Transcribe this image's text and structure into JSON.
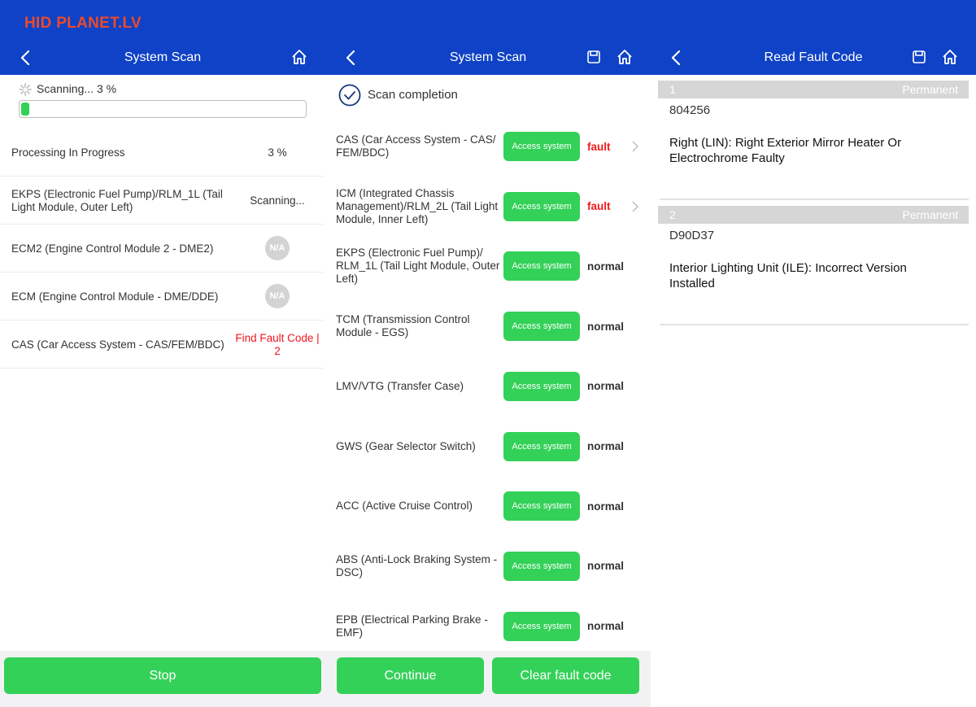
{
  "brand": "HID PLANET.LV",
  "panels": [
    {
      "header": {
        "title": "System Scan"
      },
      "status": "Scanning... 3 %",
      "progress": 3,
      "rows": [
        {
          "label": "Processing In Progress",
          "status": "3 %"
        },
        {
          "label": "EKPS (Electronic Fuel Pump)/RLM_1L (Tail Light Module, Outer Left)",
          "status": "Scanning..."
        },
        {
          "label": "ECM2 (Engine Control Module 2 - DME2)",
          "badge": "N/A"
        },
        {
          "label": "ECM (Engine Control Module - DME/DDE)",
          "badge": "N/A"
        },
        {
          "label": "CAS (Car Access System - CAS/FEM/BDC)",
          "status": "Find Fault Code | 2",
          "alert": true
        }
      ],
      "buttons": [
        "Stop"
      ]
    },
    {
      "header": {
        "title": "System Scan"
      },
      "status": "Scan completion",
      "rows": [
        {
          "label": "CAS (Car Access System - CAS/ FEM/BDC)",
          "button": "Access system",
          "status": "fault",
          "alert": true,
          "arrow": true
        },
        {
          "label": "ICM (Integrated Chassis Management)/RLM_2L (Tail Light Module, Inner Left)",
          "button": "Access system",
          "status": "fault",
          "alert": true,
          "arrow": true
        },
        {
          "label": "EKPS (Electronic Fuel Pump)/ RLM_1L (Tail Light Module, Outer Left)",
          "button": "Access system",
          "status": "normal"
        },
        {
          "label": "TCM (Transmission Control Module - EGS)",
          "button": "Access system",
          "status": "normal"
        },
        {
          "label": "LMV/VTG (Transfer Case)",
          "button": "Access system",
          "status": "normal"
        },
        {
          "label": "GWS (Gear Selector Switch)",
          "button": "Access system",
          "status": "normal"
        },
        {
          "label": "ACC (Active Cruise Control)",
          "button": "Access system",
          "status": "normal"
        },
        {
          "label": "ABS (Anti-Lock Braking System - DSC)",
          "button": "Access system",
          "status": "normal"
        },
        {
          "label": "EPB (Electrical Parking Brake - EMF)",
          "button": "Access system",
          "status": "normal"
        }
      ],
      "buttons": [
        "Continue",
        "Clear fault code"
      ]
    },
    {
      "header": {
        "title": "Read Fault Code"
      },
      "faults": [
        {
          "index": "1",
          "type": "Permanent",
          "code": "804256",
          "description": "Right (LIN): Right Exterior Mirror Heater Or Electrochrome Faulty"
        },
        {
          "index": "2",
          "type": "Permanent",
          "code": "D90D37",
          "description": "Interior Lighting Unit (ILE): Incorrect Version Installed"
        }
      ]
    }
  ]
}
